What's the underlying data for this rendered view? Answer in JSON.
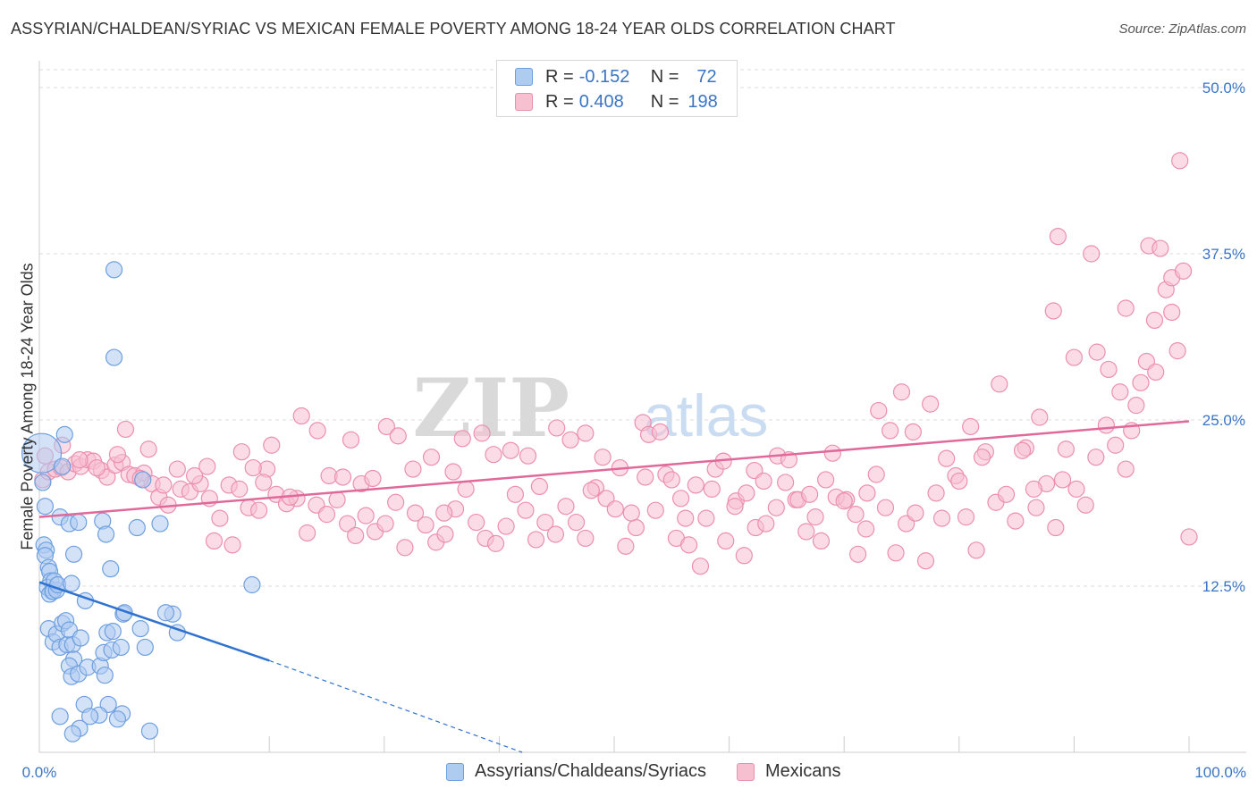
{
  "title": "ASSYRIAN/CHALDEAN/SYRIAC VS MEXICAN FEMALE POVERTY AMONG 18-24 YEAR OLDS CORRELATION CHART",
  "source": "Source: ZipAtlas.com",
  "watermark": {
    "zip": "ZIP",
    "atlas": "atlas"
  },
  "legend": {
    "rows": [
      {
        "r_label": "R =",
        "r_value": "-0.152",
        "n_label": "N =",
        "n_value": "72",
        "color": "#aecbf0",
        "stroke": "#6d9fe0"
      },
      {
        "r_label": "R =",
        "r_value": "0.408",
        "n_label": "N =",
        "n_value": "198",
        "color": "#f7c0d1",
        "stroke": "#ec8fae"
      }
    ]
  },
  "colors": {
    "blue_fill": "#aecbf0",
    "blue_stroke": "#6d9fe0",
    "blue_line": "#2f72cf",
    "pink_fill": "#f7c0d1",
    "pink_stroke": "#ec8fae",
    "pink_line": "#e0699a",
    "axis_text": "#3a75c4",
    "grid": "#dddddd"
  },
  "chart_data": {
    "type": "scatter",
    "title": "ASSYRIAN/CHALDEAN/SYRIAC VS MEXICAN FEMALE POVERTY AMONG 18-24 YEAR OLDS CORRELATION CHART",
    "xlabel": "",
    "ylabel": "Female Poverty Among 18-24 Year Olds",
    "xlim": [
      0,
      100
    ],
    "ylim": [
      0,
      50
    ],
    "x_tick_labels": {
      "min": "0.0%",
      "max": "100.0%"
    },
    "y_ticks": [
      12.5,
      25.0,
      37.5,
      50.0
    ],
    "y_tick_labels": [
      "12.5%",
      "25.0%",
      "37.5%",
      "50.0%"
    ],
    "grid": true,
    "legend_position": "bottom",
    "series": [
      {
        "name": "Assyrians/Chaldeans/Syriacs",
        "r": -0.152,
        "n": 72,
        "trend": {
          "x0": 0,
          "y0": 12.8,
          "x1": 20,
          "y1": 6.9,
          "dashed_to_x": 42,
          "dashed_to_y": 0
        },
        "points": [
          [
            0.2,
            22.5
          ],
          [
            0.3,
            20.3
          ],
          [
            0.5,
            18.5
          ],
          [
            0.4,
            15.6
          ],
          [
            0.6,
            15.2
          ],
          [
            0.5,
            14.8
          ],
          [
            0.8,
            13.9
          ],
          [
            0.9,
            13.6
          ],
          [
            1.0,
            12.9
          ],
          [
            0.7,
            12.4
          ],
          [
            1.1,
            12.1
          ],
          [
            0.9,
            11.9
          ],
          [
            1.2,
            12.1
          ],
          [
            1.5,
            12.2
          ],
          [
            1.3,
            12.9
          ],
          [
            1.6,
            12.6
          ],
          [
            1.8,
            17.7
          ],
          [
            2.0,
            21.5
          ],
          [
            2.2,
            23.9
          ],
          [
            2.6,
            17.2
          ],
          [
            3.0,
            14.9
          ],
          [
            3.4,
            17.3
          ],
          [
            2.8,
            12.7
          ],
          [
            4.0,
            11.4
          ],
          [
            5.5,
            17.4
          ],
          [
            5.8,
            16.4
          ],
          [
            6.2,
            13.8
          ],
          [
            7.3,
            10.4
          ],
          [
            7.4,
            10.5
          ],
          [
            8.5,
            16.9
          ],
          [
            10.5,
            17.2
          ],
          [
            9.0,
            20.5
          ],
          [
            6.5,
            36.3
          ],
          [
            6.5,
            29.7
          ],
          [
            18.5,
            12.6
          ],
          [
            11.6,
            10.4
          ],
          [
            0.8,
            9.3
          ],
          [
            1.2,
            8.3
          ],
          [
            1.5,
            8.9
          ],
          [
            1.8,
            7.9
          ],
          [
            2.0,
            9.7
          ],
          [
            2.3,
            9.9
          ],
          [
            2.4,
            8.1
          ],
          [
            2.6,
            9.2
          ],
          [
            2.9,
            8.1
          ],
          [
            3.0,
            7.0
          ],
          [
            2.6,
            6.5
          ],
          [
            2.8,
            5.7
          ],
          [
            3.4,
            5.9
          ],
          [
            3.6,
            8.6
          ],
          [
            3.9,
            3.6
          ],
          [
            4.2,
            6.4
          ],
          [
            5.3,
            6.5
          ],
          [
            5.6,
            7.5
          ],
          [
            5.7,
            5.8
          ],
          [
            5.9,
            9.0
          ],
          [
            6.3,
            7.7
          ],
          [
            6.4,
            9.1
          ],
          [
            7.1,
            7.9
          ],
          [
            7.2,
            2.9
          ],
          [
            6.0,
            3.6
          ],
          [
            5.2,
            2.8
          ],
          [
            4.4,
            2.7
          ],
          [
            3.5,
            1.8
          ],
          [
            2.9,
            1.4
          ],
          [
            1.8,
            2.7
          ],
          [
            8.8,
            9.3
          ],
          [
            9.2,
            7.9
          ],
          [
            9.6,
            1.6
          ],
          [
            11.0,
            10.5
          ],
          [
            12.0,
            9.0
          ],
          [
            6.8,
            2.5
          ]
        ]
      },
      {
        "name": "Mexicans",
        "r": 0.408,
        "n": 198,
        "trend": {
          "x0": 0,
          "y0": 17.7,
          "x1": 100,
          "y1": 24.9
        },
        "points": [
          [
            0.3,
            20.5
          ],
          [
            0.8,
            21.1
          ],
          [
            1.4,
            21.3
          ],
          [
            1.9,
            21.4
          ],
          [
            2.5,
            21.1
          ],
          [
            3.1,
            21.7
          ],
          [
            3.6,
            21.5
          ],
          [
            4.2,
            22.0
          ],
          [
            4.7,
            21.9
          ],
          [
            5.4,
            21.2
          ],
          [
            5.9,
            20.7
          ],
          [
            6.6,
            21.6
          ],
          [
            7.2,
            21.8
          ],
          [
            7.8,
            20.9
          ],
          [
            8.3,
            20.8
          ],
          [
            9.1,
            21.0
          ],
          [
            9.8,
            20.2
          ],
          [
            10.4,
            19.2
          ],
          [
            11.2,
            18.6
          ],
          [
            12.3,
            19.8
          ],
          [
            13.1,
            19.6
          ],
          [
            14.0,
            20.2
          ],
          [
            14.8,
            19.1
          ],
          [
            15.7,
            17.6
          ],
          [
            16.5,
            20.1
          ],
          [
            17.4,
            19.8
          ],
          [
            18.2,
            18.4
          ],
          [
            19.1,
            18.2
          ],
          [
            19.8,
            21.3
          ],
          [
            20.6,
            19.4
          ],
          [
            21.5,
            18.7
          ],
          [
            22.4,
            19.1
          ],
          [
            23.3,
            16.5
          ],
          [
            24.1,
            18.6
          ],
          [
            25.0,
            17.9
          ],
          [
            25.9,
            19.0
          ],
          [
            26.8,
            17.2
          ],
          [
            27.5,
            16.3
          ],
          [
            28.4,
            17.8
          ],
          [
            29.2,
            16.6
          ],
          [
            30.1,
            17.2
          ],
          [
            31.0,
            18.8
          ],
          [
            31.8,
            15.4
          ],
          [
            32.7,
            18.0
          ],
          [
            33.6,
            17.1
          ],
          [
            34.5,
            15.8
          ],
          [
            35.3,
            16.4
          ],
          [
            36.2,
            18.3
          ],
          [
            37.1,
            19.8
          ],
          [
            38.0,
            17.3
          ],
          [
            38.8,
            16.1
          ],
          [
            39.7,
            15.7
          ],
          [
            40.6,
            17.0
          ],
          [
            41.4,
            19.4
          ],
          [
            42.3,
            18.2
          ],
          [
            43.2,
            16.0
          ],
          [
            44.0,
            17.3
          ],
          [
            44.9,
            16.4
          ],
          [
            45.8,
            18.5
          ],
          [
            46.7,
            17.3
          ],
          [
            47.5,
            16.1
          ],
          [
            48.4,
            19.9
          ],
          [
            49.3,
            19.1
          ],
          [
            50.1,
            18.3
          ],
          [
            51.0,
            15.5
          ],
          [
            51.9,
            16.9
          ],
          [
            52.7,
            20.7
          ],
          [
            53.6,
            18.2
          ],
          [
            54.5,
            20.9
          ],
          [
            55.4,
            16.1
          ],
          [
            56.2,
            17.6
          ],
          [
            57.1,
            20.1
          ],
          [
            58.0,
            17.6
          ],
          [
            58.8,
            21.3
          ],
          [
            59.7,
            15.9
          ],
          [
            60.6,
            18.9
          ],
          [
            61.5,
            19.5
          ],
          [
            62.3,
            16.9
          ],
          [
            63.2,
            17.2
          ],
          [
            64.1,
            18.4
          ],
          [
            64.9,
            20.3
          ],
          [
            65.8,
            19.0
          ],
          [
            66.7,
            16.6
          ],
          [
            67.5,
            17.7
          ],
          [
            68.4,
            20.5
          ],
          [
            69.3,
            19.2
          ],
          [
            70.2,
            19.0
          ],
          [
            71.0,
            17.9
          ],
          [
            71.9,
            16.8
          ],
          [
            72.8,
            20.9
          ],
          [
            73.6,
            18.4
          ],
          [
            74.5,
            15.0
          ],
          [
            75.4,
            17.2
          ],
          [
            76.2,
            18.0
          ],
          [
            77.1,
            14.4
          ],
          [
            78.0,
            19.5
          ],
          [
            78.9,
            22.1
          ],
          [
            79.7,
            20.8
          ],
          [
            80.6,
            17.7
          ],
          [
            81.5,
            15.2
          ],
          [
            82.3,
            22.6
          ],
          [
            83.2,
            18.8
          ],
          [
            84.1,
            19.4
          ],
          [
            84.9,
            17.4
          ],
          [
            85.8,
            22.9
          ],
          [
            86.7,
            18.4
          ],
          [
            87.6,
            20.2
          ],
          [
            88.4,
            16.9
          ],
          [
            89.3,
            22.8
          ],
          [
            90.2,
            19.8
          ],
          [
            91.0,
            18.6
          ],
          [
            91.9,
            22.2
          ],
          [
            92.8,
            24.6
          ],
          [
            93.6,
            23.1
          ],
          [
            94.5,
            21.3
          ],
          [
            95.4,
            26.1
          ],
          [
            96.3,
            29.4
          ],
          [
            97.1,
            28.6
          ],
          [
            98.0,
            34.8
          ],
          [
            98.5,
            33.1
          ],
          [
            99.2,
            44.5
          ],
          [
            0.5,
            22.3
          ],
          [
            2.0,
            23.1
          ],
          [
            3.5,
            22.0
          ],
          [
            5.0,
            21.4
          ],
          [
            6.8,
            22.4
          ],
          [
            7.5,
            24.3
          ],
          [
            8.8,
            20.6
          ],
          [
            9.5,
            22.8
          ],
          [
            10.8,
            20.1
          ],
          [
            12.0,
            21.3
          ],
          [
            13.5,
            20.8
          ],
          [
            14.6,
            21.5
          ],
          [
            15.2,
            15.9
          ],
          [
            16.8,
            15.6
          ],
          [
            17.6,
            22.6
          ],
          [
            18.6,
            21.4
          ],
          [
            19.5,
            20.3
          ],
          [
            20.2,
            23.1
          ],
          [
            21.8,
            19.2
          ],
          [
            22.8,
            25.3
          ],
          [
            24.2,
            24.2
          ],
          [
            25.2,
            20.8
          ],
          [
            26.4,
            20.7
          ],
          [
            27.1,
            23.5
          ],
          [
            28.0,
            20.2
          ],
          [
            29.0,
            20.6
          ],
          [
            30.2,
            24.5
          ],
          [
            31.2,
            23.8
          ],
          [
            32.5,
            21.3
          ],
          [
            34.1,
            22.2
          ],
          [
            35.2,
            18.0
          ],
          [
            36.0,
            21.1
          ],
          [
            36.8,
            23.6
          ],
          [
            38.5,
            24.0
          ],
          [
            39.5,
            22.4
          ],
          [
            41.0,
            22.7
          ],
          [
            42.5,
            22.3
          ],
          [
            43.5,
            20.0
          ],
          [
            45.0,
            24.4
          ],
          [
            46.2,
            23.5
          ],
          [
            47.5,
            24.0
          ],
          [
            48.0,
            19.7
          ],
          [
            49.0,
            22.2
          ],
          [
            50.5,
            21.4
          ],
          [
            51.5,
            18.0
          ],
          [
            52.5,
            24.8
          ],
          [
            53.0,
            23.9
          ],
          [
            54.0,
            24.1
          ],
          [
            55.0,
            20.5
          ],
          [
            55.8,
            19.1
          ],
          [
            56.5,
            15.6
          ],
          [
            57.5,
            14.0
          ],
          [
            58.5,
            19.8
          ],
          [
            59.5,
            21.9
          ],
          [
            60.5,
            18.5
          ],
          [
            61.3,
            14.8
          ],
          [
            62.2,
            21.2
          ],
          [
            63.0,
            20.4
          ],
          [
            64.2,
            22.3
          ],
          [
            65.2,
            22.0
          ],
          [
            66.0,
            19.0
          ],
          [
            67.0,
            19.4
          ],
          [
            68.0,
            15.9
          ],
          [
            69.0,
            22.5
          ],
          [
            70.0,
            18.9
          ],
          [
            71.2,
            14.9
          ],
          [
            72.0,
            19.5
          ],
          [
            73.0,
            25.7
          ],
          [
            74.0,
            24.2
          ],
          [
            75.0,
            27.1
          ],
          [
            76.0,
            24.1
          ],
          [
            77.5,
            26.2
          ],
          [
            78.5,
            17.6
          ],
          [
            80.0,
            20.4
          ],
          [
            81.0,
            24.5
          ],
          [
            82.0,
            22.2
          ],
          [
            83.5,
            27.7
          ],
          [
            85.5,
            22.7
          ],
          [
            86.5,
            19.8
          ],
          [
            87.0,
            25.2
          ],
          [
            88.2,
            33.2
          ],
          [
            88.6,
            38.8
          ],
          [
            89.0,
            20.5
          ],
          [
            90.0,
            29.7
          ],
          [
            91.5,
            37.5
          ],
          [
            92.0,
            30.1
          ],
          [
            93.0,
            28.8
          ],
          [
            94.0,
            27.1
          ],
          [
            94.5,
            33.4
          ],
          [
            95.0,
            24.2
          ],
          [
            95.8,
            27.8
          ],
          [
            96.5,
            38.1
          ],
          [
            97.5,
            37.9
          ],
          [
            99.0,
            30.2
          ],
          [
            98.5,
            35.7
          ],
          [
            97.0,
            32.5
          ],
          [
            99.5,
            36.2
          ],
          [
            100.0,
            16.2
          ]
        ]
      }
    ]
  },
  "bottom_legend": [
    {
      "label": "Assyrians/Chaldeans/Syriacs",
      "color": "#aecbf0",
      "stroke": "#6d9fe0"
    },
    {
      "label": "Mexicans",
      "color": "#f7c0d1",
      "stroke": "#ec8fae"
    }
  ]
}
